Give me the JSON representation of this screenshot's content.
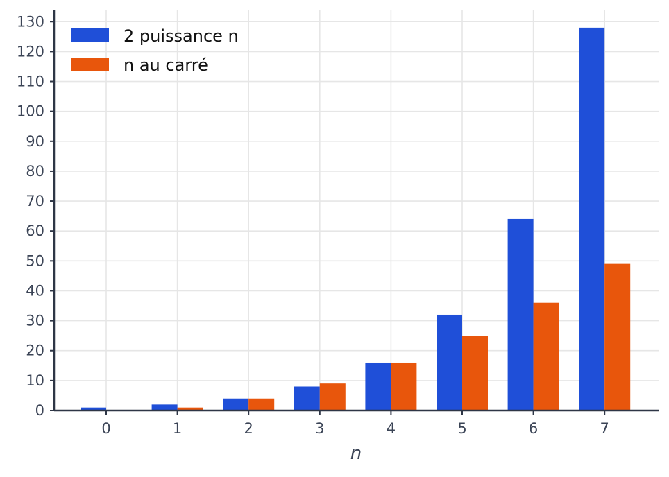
{
  "chart_data": {
    "type": "bar",
    "categories": [
      "0",
      "1",
      "2",
      "3",
      "4",
      "5",
      "6",
      "7"
    ],
    "series": [
      {
        "name": "2 puissance n",
        "values": [
          1,
          2,
          4,
          8,
          16,
          32,
          64,
          128
        ],
        "color": "#1f4fd8"
      },
      {
        "name": "n au carré",
        "values": [
          0,
          1,
          4,
          9,
          16,
          25,
          36,
          49
        ],
        "color": "#e8560c"
      }
    ],
    "xlabel": "n",
    "ylabel": "",
    "ylim": [
      0,
      134
    ],
    "yticks": [
      0,
      10,
      20,
      30,
      40,
      50,
      60,
      70,
      80,
      90,
      100,
      110,
      120,
      130
    ],
    "grid": true,
    "legend": "top-left"
  }
}
